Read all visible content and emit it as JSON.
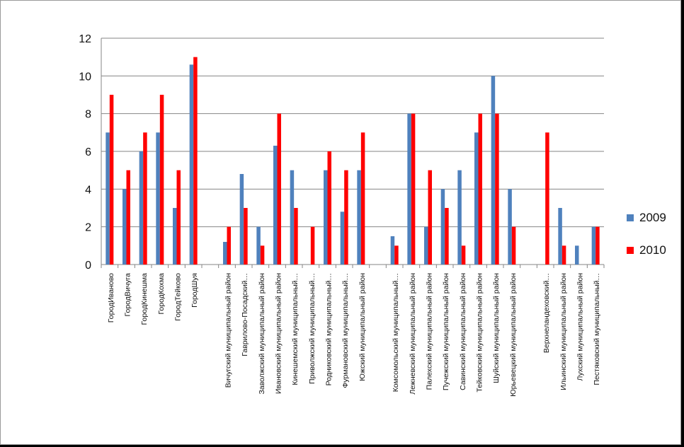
{
  "chart_data": {
    "type": "bar",
    "categories": [
      "ГородИваново",
      "ГородВичуга",
      "ГородКинешма",
      "ГородКохма",
      "ГородТейково",
      "ГородШуя",
      "",
      "Вичугский муниципальный район",
      "Гаврилово-Посадский…",
      "Заволжский муниципальный район",
      "Ивановский муниципальный район",
      "Кинешемский муниципальный…",
      "Приволжский муниципальный…",
      "Родниковский муниципальный…",
      "Фурмановский муниципальный…",
      "Южский муниципальный район",
      "",
      "Комсомольский муниципальный…",
      "Лежневский муниципальный район",
      "Палехский муниципальный район",
      "Пучежский муниципальный район",
      "Савинский муниципальный район",
      "Тейковский муниципальный район",
      "Шуйский муниципальный район",
      "Юрьевецкий муниципальный район",
      "",
      "Верхнеландеховский…",
      "Ильинский муниципальный район",
      "Лухский муниципальный район",
      "Пестяковский муниципальный…"
    ],
    "series": [
      {
        "name": "2009",
        "color": "#4f81bd",
        "values": [
          7,
          4,
          6,
          7,
          3,
          10.6,
          null,
          1.2,
          4.8,
          2,
          6.3,
          5,
          0,
          5,
          2.8,
          5,
          null,
          1.5,
          8,
          2,
          4,
          5,
          7,
          10,
          4,
          null,
          0,
          3,
          1,
          2
        ]
      },
      {
        "name": "2010",
        "color": "#ff0000",
        "values": [
          9,
          5,
          7,
          9,
          5,
          11,
          null,
          2,
          3,
          1,
          8,
          3,
          2,
          6,
          5,
          7,
          null,
          1,
          8,
          5,
          3,
          1,
          8,
          8,
          2,
          null,
          7,
          1,
          0,
          2
        ]
      }
    ],
    "yticks": [
      "0",
      "2",
      "4",
      "6",
      "8",
      "10",
      "12"
    ],
    "ylim": [
      0,
      12
    ],
    "grid": true,
    "legend_position": "right"
  }
}
